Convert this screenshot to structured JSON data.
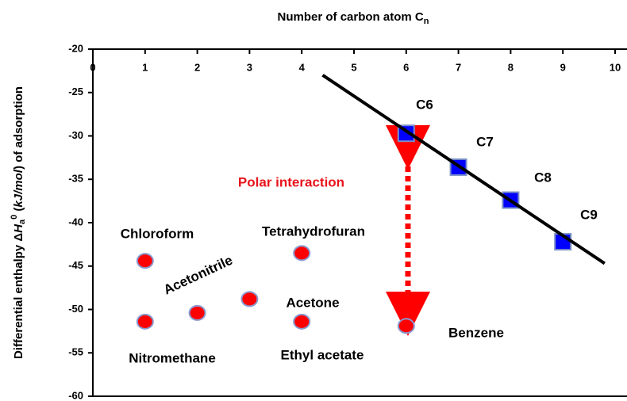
{
  "chart_data": {
    "type": "scatter",
    "x_label": [
      "Number of carbon atom C",
      "n"
    ],
    "y_label": [
      "Differential enthalpy Δ",
      "H",
      "a",
      "0",
      " (",
      "kJ/mol",
      ")",
      " of adsorption"
    ],
    "xlim": [
      0,
      10
    ],
    "xticks": [
      0,
      1,
      2,
      3,
      4,
      5,
      6,
      7,
      8,
      9,
      10
    ],
    "ylim": [
      -60,
      -20
    ],
    "yticks": [
      -20,
      -25,
      -30,
      -35,
      -40,
      -45,
      -50,
      -55,
      -60
    ],
    "series": [
      {
        "color": "#0000ff",
        "marker": "square",
        "x": [
          6,
          7,
          8,
          9
        ],
        "values": [
          -29.7,
          -33.6,
          -37.4,
          -42.2
        ]
      },
      {
        "color": "#ff0000",
        "marker": "circle",
        "x": [
          1,
          1,
          2,
          3,
          4,
          4,
          6
        ],
        "values": [
          -44.4,
          -51.4,
          -50.4,
          -48.8,
          -43.5,
          -51.4,
          -51.9
        ]
      },
      {
        "color": "#000000",
        "marker": "line",
        "x": [
          4.4,
          9.8
        ],
        "values": [
          -23,
          -44.7
        ]
      }
    ],
    "annotations": [
      "C6",
      "C7",
      "C8",
      "C9",
      "Chloroform",
      "Tetrahydrofuran",
      "Acetonitrile",
      "Acetone",
      "Nitromethane",
      "Ethyl acetate",
      "Benzene",
      "Polar interaction"
    ]
  }
}
